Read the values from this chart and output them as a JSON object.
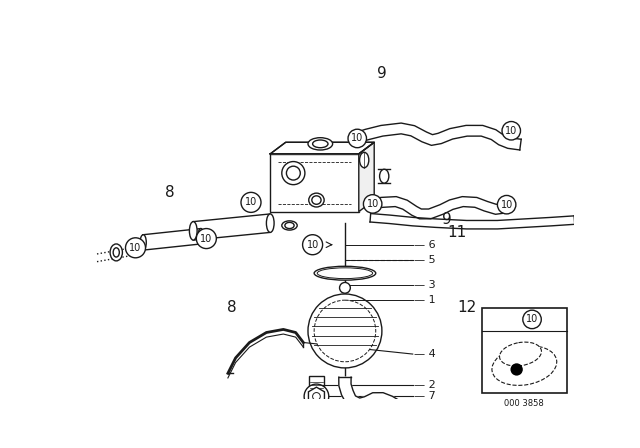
{
  "bg": "#ffffff",
  "lc": "#1a1a1a",
  "fig_w": 6.4,
  "fig_h": 4.48,
  "dpi": 100
}
